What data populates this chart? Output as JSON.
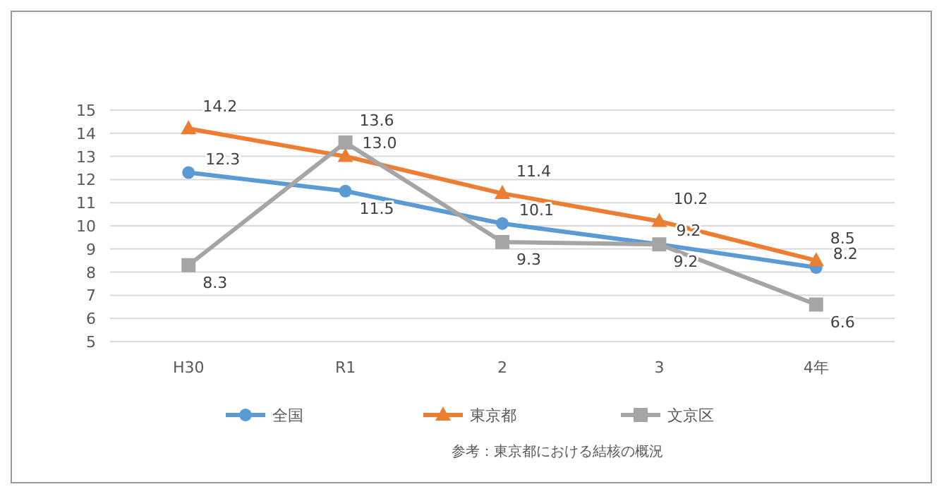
{
  "chart_data": {
    "type": "line",
    "categories": [
      "H30",
      "R1",
      "2",
      "3",
      "4年"
    ],
    "series": [
      {
        "name": "全国",
        "color": "#5b9bd5",
        "marker": "circle",
        "values": [
          12.3,
          11.5,
          10.1,
          9.2,
          8.2
        ],
        "value_labels": [
          "12.3",
          "11.5",
          "10.1",
          "9.2",
          "8.2"
        ]
      },
      {
        "name": "東京都",
        "color": "#ed7d31",
        "marker": "triangle",
        "values": [
          14.2,
          13.0,
          11.4,
          10.2,
          8.5
        ],
        "value_labels": [
          "14.2",
          "13.0",
          "11.4",
          "10.2",
          "8.5"
        ]
      },
      {
        "name": "文京区",
        "color": "#a5a5a5",
        "marker": "square",
        "values": [
          8.3,
          13.6,
          9.3,
          9.2,
          6.6
        ],
        "value_labels": [
          "8.3",
          "13.6",
          "9.3",
          "9.2",
          "6.6"
        ]
      }
    ],
    "ylim": [
      5,
      15
    ],
    "yticks": [
      5,
      6,
      7,
      8,
      9,
      10,
      11,
      12,
      13,
      14,
      15
    ],
    "grid": "y",
    "legend": "bottom",
    "annotations": [
      "参考：東京都における結核の概況"
    ]
  }
}
